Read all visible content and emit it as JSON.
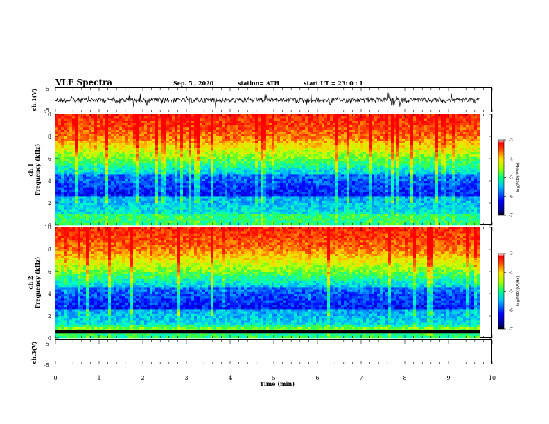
{
  "header": {
    "title": "VLF Spectra",
    "date": "Sep. 5 , 2020",
    "station": "station= ATH",
    "start": "start  UT  =   23: 0  : 1"
  },
  "chart_data": [
    {
      "type": "line",
      "panel": "ch1-waveform",
      "ylabel": "ch.1(V)",
      "ylim": [
        -5,
        5
      ],
      "yticks": [
        "5",
        "-5"
      ],
      "xlim": [
        0,
        10
      ],
      "color": "#000000"
    },
    {
      "type": "heatmap",
      "panel": "ch1-spectrogram",
      "ylabel_line1": "ch.1",
      "ylabel_line2": "Frequency  (kHz)",
      "ylim": [
        0,
        10
      ],
      "yticks": [
        "0",
        "2",
        "4",
        "6",
        "8",
        "10"
      ],
      "xlim": [
        0,
        9.83
      ],
      "colorbar": {
        "label": "log(PSD)(V²/Hz)",
        "range": [
          -7,
          -3
        ],
        "ticks": [
          "-3",
          "-4",
          "-5",
          "-6",
          "-7"
        ]
      }
    },
    {
      "type": "heatmap",
      "panel": "ch2-spectrogram",
      "ylabel_line1": "ch.2",
      "ylabel_line2": "Frequency  (kHz)",
      "ylim": [
        0,
        10
      ],
      "yticks": [
        "0",
        "2",
        "4",
        "6",
        "8",
        "10"
      ],
      "xlim": [
        0,
        9.83
      ],
      "colorbar": {
        "label": "log(PSD)(V²/Hz)",
        "range": [
          -7,
          -3
        ],
        "ticks": [
          "-3",
          "-4",
          "-5",
          "-6",
          "-7"
        ]
      }
    },
    {
      "type": "line",
      "panel": "ch3-waveform",
      "ylabel": "ch.3(V)",
      "ylim": [
        -5,
        5
      ],
      "yticks": [
        "5",
        "-5"
      ],
      "xlim": [
        0,
        10
      ],
      "value_level": -1.5,
      "xlabel": "Time  (min)",
      "xticks": [
        "0",
        "1",
        "2",
        "3",
        "4",
        "5",
        "6",
        "7",
        "8",
        "9",
        "10"
      ]
    }
  ]
}
